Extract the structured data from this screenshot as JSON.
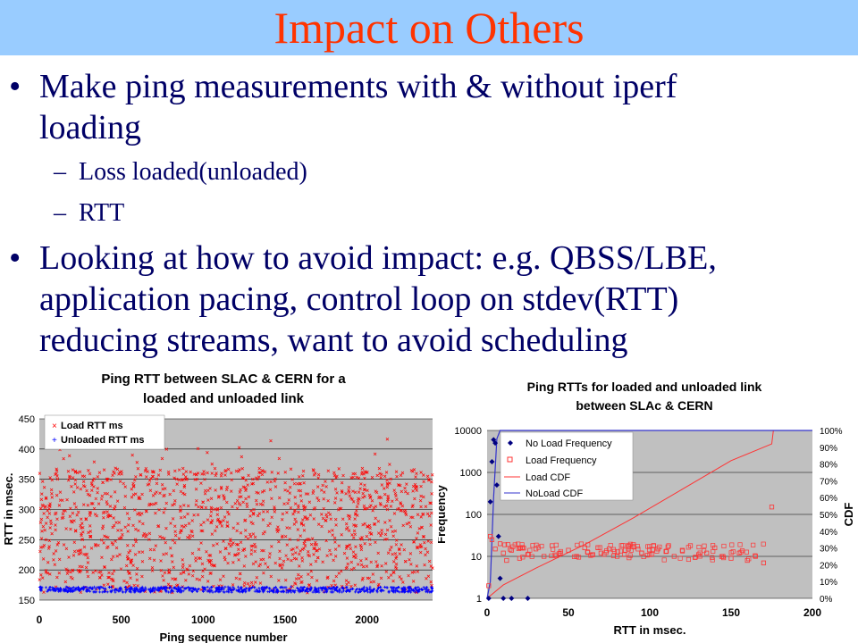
{
  "slide": {
    "title": "Impact on Others",
    "bullets": [
      {
        "text_lines": [
          "Make ping measurements with & without iperf",
          "loading"
        ]
      },
      {
        "text_lines": [
          "Looking at how to avoid impact: e.g. QBSS/LBE,",
          "application pacing, control loop on stdev(RTT)",
          "reducing streams, want to avoid scheduling"
        ]
      }
    ],
    "sub_bullets": [
      "Loss loaded(unloaded)",
      "RTT"
    ],
    "bullet_glyph": "•",
    "dash_glyph": "–"
  },
  "chart_data": [
    {
      "type": "scatter",
      "title_lines": [
        "Ping RTT between SLAC & CERN for a",
        "loaded and unloaded link"
      ],
      "xlabel": "Ping sequence number",
      "ylabel": "RTT in msec.",
      "xlim": [
        0,
        2400
      ],
      "ylim": [
        150,
        450
      ],
      "xticks": [
        0,
        500,
        1000,
        1500,
        2000
      ],
      "yticks": [
        150,
        200,
        250,
        300,
        350,
        400,
        450
      ],
      "grid": true,
      "legend_position": "top-left",
      "colors": {
        "load": "#ff0000",
        "unloaded": "#0000ff",
        "plot_bg": "#c0c0c0"
      },
      "series": [
        {
          "name": "Load RTT ms",
          "marker": "x",
          "n": 2400,
          "y_range": [
            162,
            420
          ],
          "note": "dense"
        },
        {
          "name": "Unloaded RTT ms",
          "marker": "+",
          "n": 2400,
          "y_range": [
            163,
            172
          ]
        }
      ]
    },
    {
      "type": "line",
      "title_lines": [
        "Ping RTTs for loaded and unloaded link",
        "between SLAc & CERN"
      ],
      "xlabel": "RTT in msec.",
      "ylabel": "Frequency",
      "y2label": "CDF",
      "xlim": [
        0,
        200
      ],
      "ylim": [
        1,
        10000
      ],
      "yscale": "log",
      "xticks": [
        0,
        50,
        100,
        150,
        200
      ],
      "yticks": [
        1,
        10,
        100,
        1000,
        10000
      ],
      "y2ticks": [
        "0%",
        "10%",
        "20%",
        "30%",
        "40%",
        "50%",
        "60%",
        "70%",
        "80%",
        "90%",
        "100%"
      ],
      "grid": true,
      "legend_position": "top-center",
      "colors": {
        "noload": "#000080",
        "load": "#ff3333",
        "noload_cdf": "#3333cc",
        "plot_bg": "#c0c0c0"
      },
      "series": [
        {
          "name": "No Load Frequency",
          "x": [
            1,
            2,
            3,
            4,
            5,
            6,
            7,
            8,
            10,
            15,
            25
          ],
          "y": [
            1,
            200,
            1800,
            6000,
            5000,
            500,
            30,
            3,
            1,
            1,
            1
          ]
        },
        {
          "name": "Load Frequency",
          "x": [
            1,
            2,
            3,
            5,
            8,
            10,
            12,
            15,
            20,
            25,
            30,
            35,
            40,
            45,
            50,
            55,
            60,
            65,
            70,
            75,
            80,
            85,
            90,
            95,
            100,
            105,
            110,
            115,
            120,
            125,
            130,
            135,
            140,
            145,
            150,
            155,
            160,
            165,
            170,
            175
          ],
          "y": [
            2,
            30,
            25,
            15,
            20,
            12,
            8,
            14,
            9,
            11,
            15,
            10,
            18,
            12,
            14,
            10,
            16,
            11,
            12,
            15,
            10,
            14,
            19,
            12,
            11,
            15,
            13,
            10,
            14,
            18,
            11,
            12,
            16,
            10,
            9,
            12,
            8,
            10,
            7,
            150
          ]
        },
        {
          "name": "Load CDF",
          "x": [
            0,
            10,
            30,
            60,
            90,
            120,
            150,
            170,
            175,
            176
          ],
          "y": [
            0,
            8,
            18,
            32,
            48,
            65,
            82,
            90,
            92,
            100
          ]
        },
        {
          "name": "NoLoad CDF",
          "x": [
            0,
            2,
            4,
            6,
            8,
            200
          ],
          "y": [
            0,
            10,
            60,
            95,
            100,
            100
          ]
        }
      ]
    }
  ]
}
